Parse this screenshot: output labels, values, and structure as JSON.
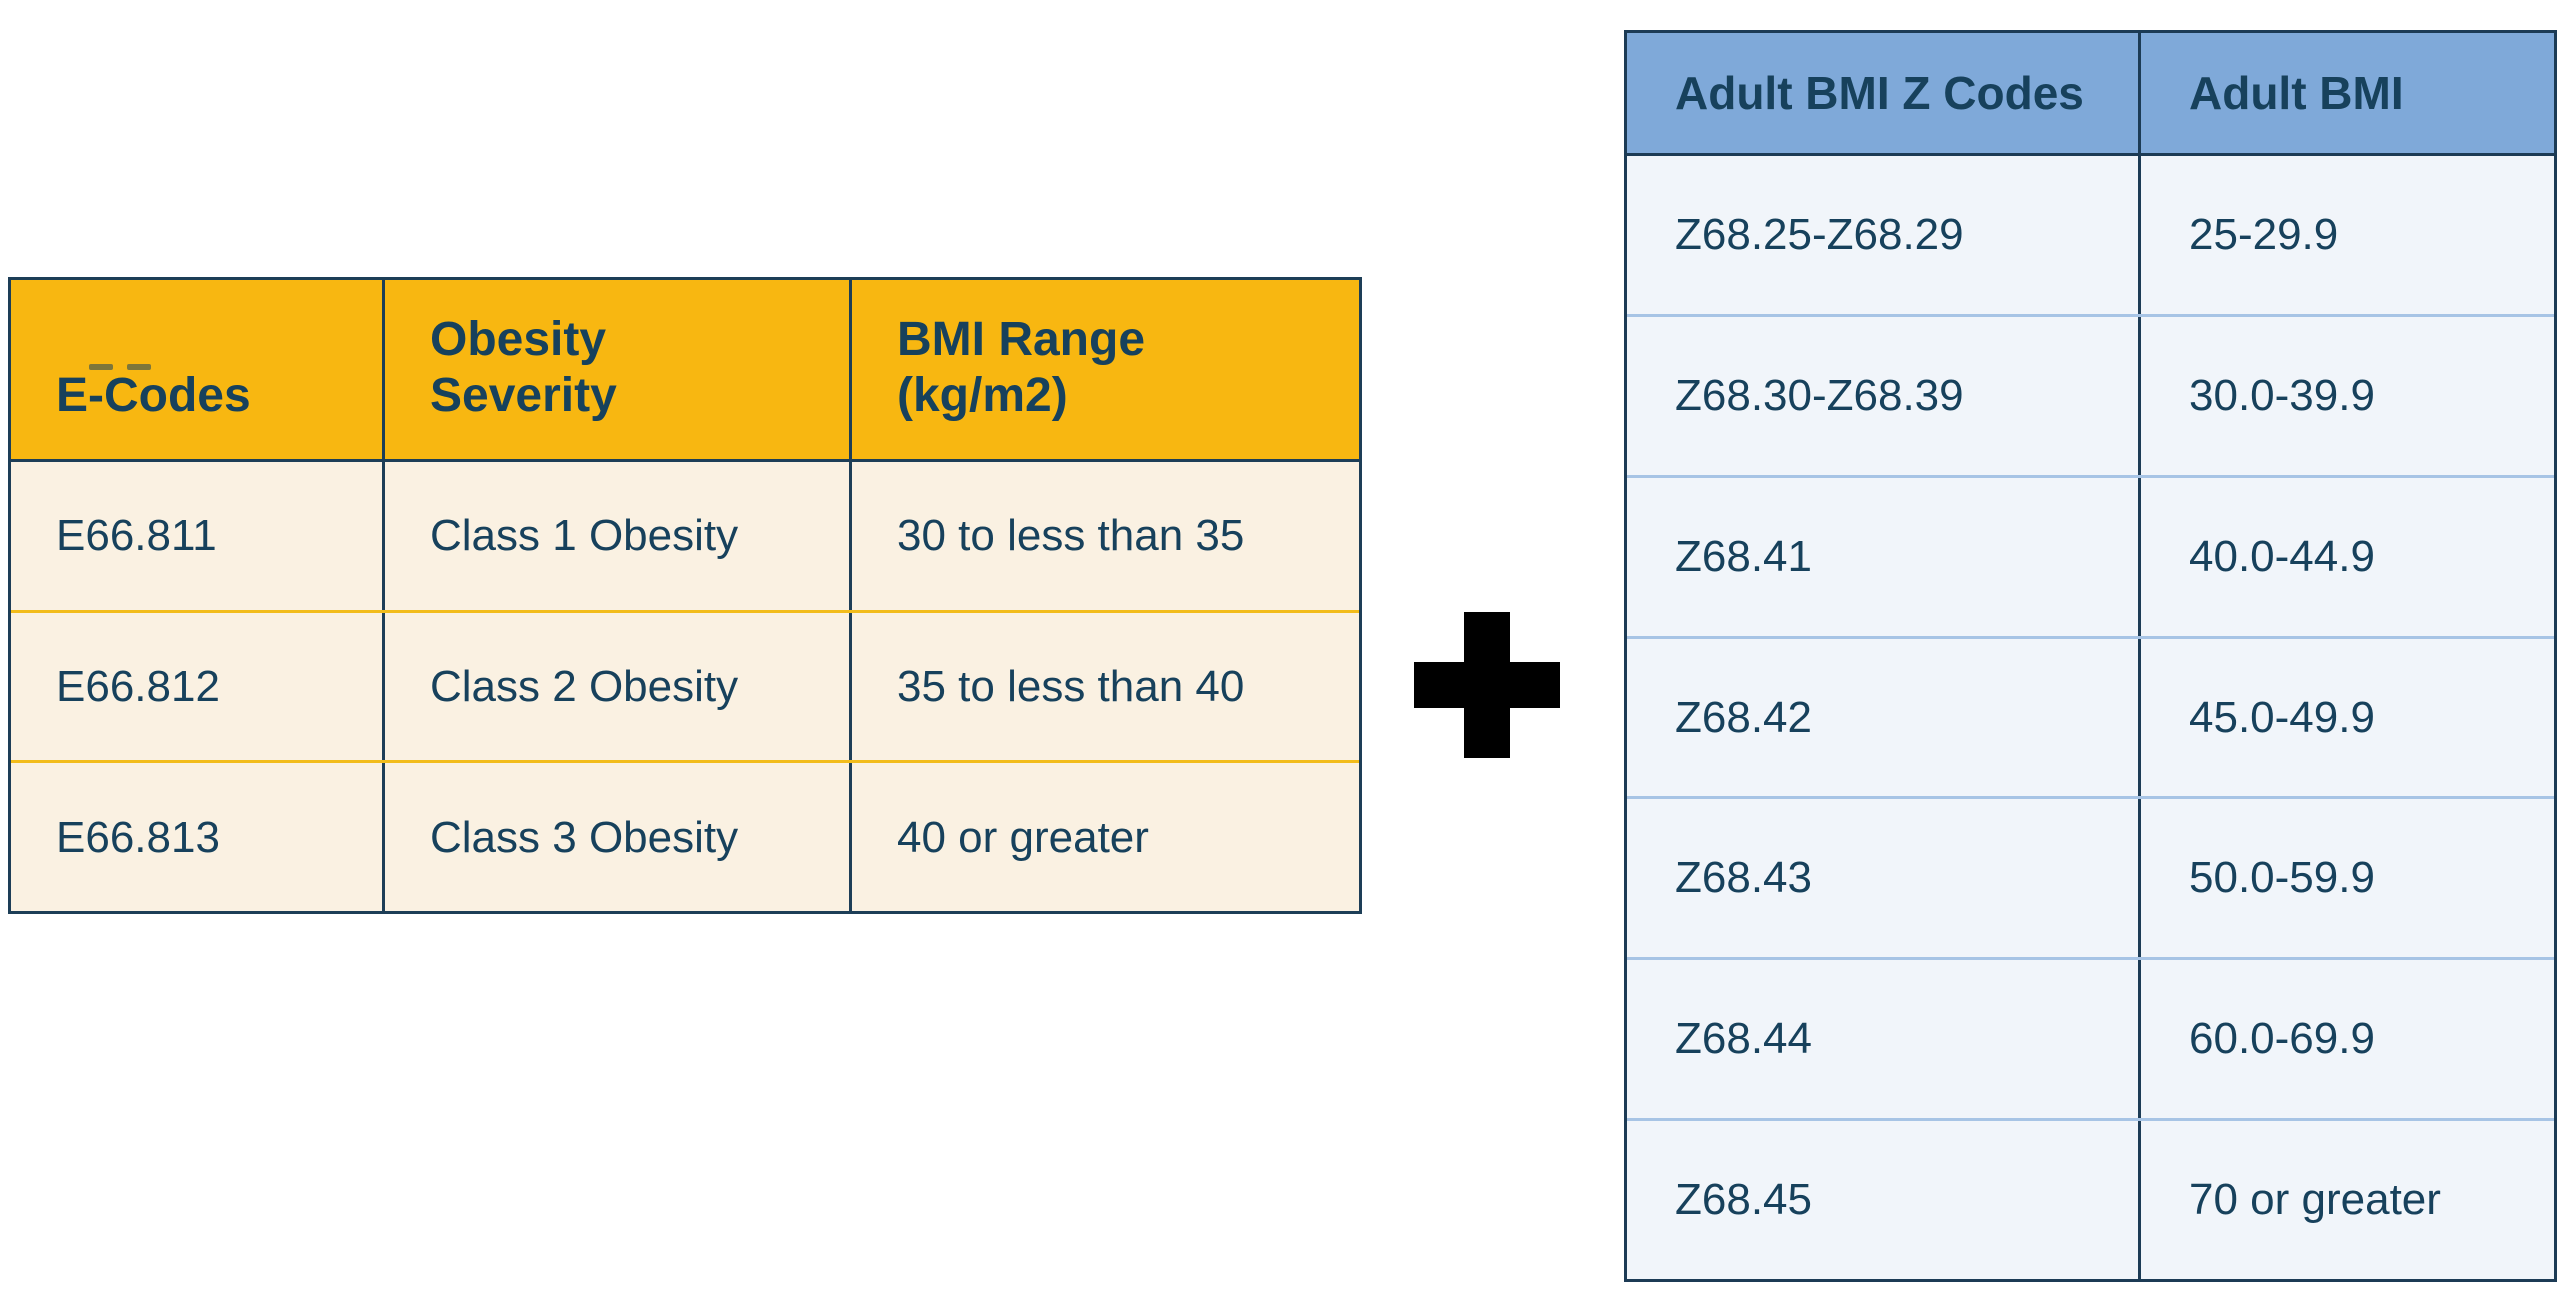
{
  "page": {
    "background": "#ffffff"
  },
  "plus_icon": {
    "glyph": "+",
    "color": "#000000"
  },
  "left_table": {
    "colors": {
      "header_bg": "#F8B711",
      "body_bg": "#FAF1E2",
      "border": "#1D3E57",
      "row_divider": "#F2BC1B",
      "text": "#17415C"
    }
  },
  "right_table": {
    "colors": {
      "header_bg": "#7FA9D9",
      "body_bg": "#F1F5FA",
      "border": "#1C3B55",
      "row_divider": "#A7C4E5",
      "text": "#17415C"
    }
  },
  "chart_data": [
    {
      "type": "table",
      "columns": [
        "E-Codes",
        "Obesity\nSeverity",
        "BMI Range\n(kg/m2)"
      ],
      "rows": [
        [
          "E66.811",
          "Class 1 Obesity",
          "30 to less than 35"
        ],
        [
          "E66.812",
          "Class 2 Obesity",
          "35 to less than 40"
        ],
        [
          "E66.813",
          "Class 3 Obesity",
          "40 or greater"
        ]
      ]
    },
    {
      "type": "table",
      "columns": [
        "Adult BMI Z Codes",
        "Adult BMI"
      ],
      "rows": [
        [
          "Z68.25-Z68.29",
          "25-29.9"
        ],
        [
          "Z68.30-Z68.39",
          "30.0-39.9"
        ],
        [
          "Z68.41",
          "40.0-44.9"
        ],
        [
          "Z68.42",
          "45.0-49.9"
        ],
        [
          "Z68.43",
          "50.0-59.9"
        ],
        [
          "Z68.44",
          "60.0-69.9"
        ],
        [
          "Z68.45",
          "70 or greater"
        ]
      ]
    }
  ]
}
